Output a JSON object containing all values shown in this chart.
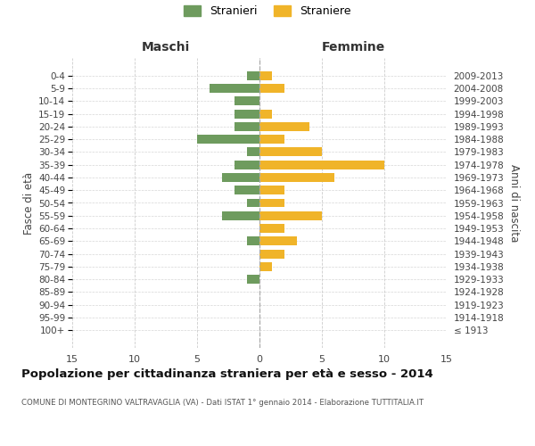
{
  "age_groups": [
    "100+",
    "95-99",
    "90-94",
    "85-89",
    "80-84",
    "75-79",
    "70-74",
    "65-69",
    "60-64",
    "55-59",
    "50-54",
    "45-49",
    "40-44",
    "35-39",
    "30-34",
    "25-29",
    "20-24",
    "15-19",
    "10-14",
    "5-9",
    "0-4"
  ],
  "birth_years": [
    "≤ 1913",
    "1914-1918",
    "1919-1923",
    "1924-1928",
    "1929-1933",
    "1934-1938",
    "1939-1943",
    "1944-1948",
    "1949-1953",
    "1954-1958",
    "1959-1963",
    "1964-1968",
    "1969-1973",
    "1974-1978",
    "1979-1983",
    "1984-1988",
    "1989-1993",
    "1994-1998",
    "1999-2003",
    "2004-2008",
    "2009-2013"
  ],
  "males": [
    0,
    0,
    0,
    0,
    1,
    0,
    0,
    1,
    0,
    3,
    1,
    2,
    3,
    2,
    1,
    5,
    2,
    2,
    2,
    4,
    1
  ],
  "females": [
    0,
    0,
    0,
    0,
    0,
    1,
    2,
    3,
    2,
    5,
    2,
    2,
    6,
    10,
    5,
    2,
    4,
    1,
    0,
    2,
    1
  ],
  "male_color": "#6e9b5e",
  "female_color": "#f0b429",
  "background_color": "#ffffff",
  "grid_color": "#cccccc",
  "xlim": 15,
  "title": "Popolazione per cittadinanza straniera per età e sesso - 2014",
  "subtitle": "COMUNE DI MONTEGRINO VALTRAVAGLIA (VA) - Dati ISTAT 1° gennaio 2014 - Elaborazione TUTTITALIA.IT",
  "ylabel_left": "Fasce di età",
  "ylabel_right": "Anni di nascita",
  "xlabel_left": "Maschi",
  "xlabel_right": "Femmine",
  "legend_males": "Stranieri",
  "legend_females": "Straniere"
}
